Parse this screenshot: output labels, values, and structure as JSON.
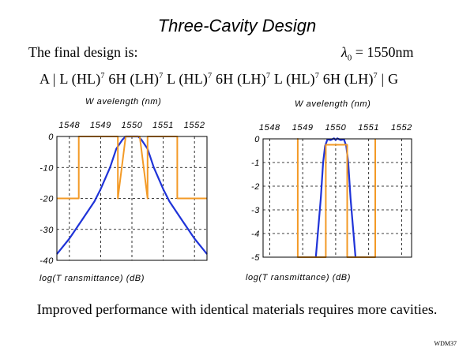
{
  "slide": {
    "title": "Three-Cavity Design",
    "lead": "The final design is:",
    "lambda_symbol": "λ",
    "lambda_sub": "0",
    "lambda_value": " = 1550nm",
    "formula_parts": [
      "A | L (HL)",
      "7",
      " 6H (LH)",
      "7",
      " L (HL)",
      "7",
      " 6H (LH)",
      "7",
      " L (HL)",
      "7",
      " 6H  (LH)",
      "7",
      " | G"
    ],
    "bottom_text": "Improved performance with identical materials requires more cavities.",
    "footer": "WDM37"
  },
  "colors": {
    "theory": "#1f33d8",
    "envelope": "#f39a26",
    "grid": "#000000"
  },
  "chart_data": [
    {
      "type": "line",
      "title": "",
      "xlabel": "W avelength (nm)",
      "ylabel": "log(T ransmittance) (dB)",
      "xlim": [
        1547.6,
        1552.4
      ],
      "ylim": [
        -40,
        0
      ],
      "xticks": [
        1548,
        1549,
        1550,
        1551,
        1552
      ],
      "yticks": [
        0,
        -10,
        -20,
        -30,
        -40
      ],
      "grid": true,
      "series": [
        {
          "color": "#1f33d8",
          "x": [
            1547.6,
            1548.0,
            1548.4,
            1548.8,
            1549.0,
            1549.3,
            1549.5,
            1549.7,
            1549.8,
            1549.9,
            1550.0,
            1550.1,
            1550.2,
            1550.3,
            1550.5,
            1550.7,
            1551.0,
            1551.2,
            1551.6,
            1552.0,
            1552.4
          ],
          "y": [
            -38,
            -33,
            -27,
            -21,
            -17,
            -10,
            -4,
            -1,
            0,
            0,
            0,
            0,
            0,
            -1,
            -4,
            -10,
            -17,
            -21,
            -27,
            -33,
            -38
          ]
        },
        {
          "color": "#f39a26",
          "x": [
            1547.6,
            1548.3,
            1548.3,
            1549.55,
            1549.55,
            1549.8,
            1550.25,
            1550.5,
            1550.5,
            1551.45,
            1551.45,
            1552.4
          ],
          "y": [
            -20,
            -20,
            0,
            0,
            -20,
            0,
            0,
            -20,
            0,
            0,
            -20,
            -20
          ]
        }
      ]
    },
    {
      "type": "line",
      "title": "",
      "xlabel": "W avelength (nm)",
      "ylabel": "log(T ransmittance) (dB)",
      "xlim": [
        1547.8,
        1552.3
      ],
      "ylim": [
        -5,
        0
      ],
      "xticks": [
        1548,
        1549,
        1550,
        1551,
        1552
      ],
      "yticks": [
        0,
        -1,
        -2,
        -3,
        -4,
        -5
      ],
      "grid": true,
      "series": [
        {
          "color": "#1f33d8",
          "x": [
            1549.4,
            1549.55,
            1549.62,
            1549.68,
            1549.75,
            1549.85,
            1549.95,
            1550.0,
            1550.05,
            1550.15,
            1550.25,
            1550.32,
            1550.38,
            1550.45,
            1550.6
          ],
          "y": [
            -5,
            -2.5,
            -1,
            -0.3,
            -0.02,
            -0.05,
            0.02,
            -0.05,
            0.02,
            -0.05,
            -0.02,
            -0.3,
            -1,
            -2.5,
            -5
          ]
        },
        {
          "color": "#f39a26",
          "x": [
            1548.85,
            1548.85,
            1548.85,
            1549.7,
            1549.7,
            1550.35,
            1550.35,
            1550.35,
            1551.2,
            1551.2
          ],
          "y": [
            -5,
            0,
            -5,
            -5,
            -0.25,
            -0.25,
            -5,
            -5,
            -5,
            0
          ]
        }
      ]
    }
  ]
}
